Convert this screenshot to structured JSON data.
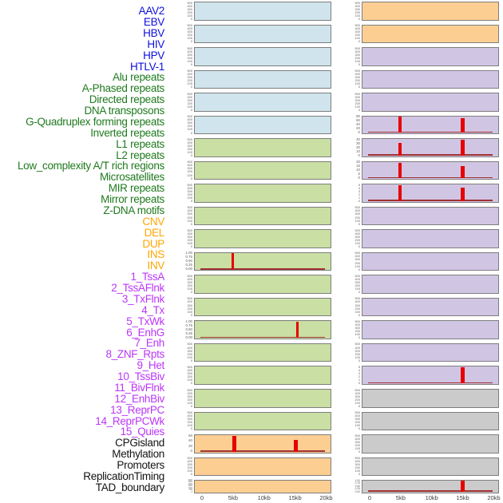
{
  "figure": {
    "group_colors": {
      "virus": "#0f0fdd",
      "repeat": "#1f7a1e",
      "sv": "#ffa500",
      "chromatin": "#bb35fa",
      "other": "#141414"
    },
    "row_labels": [
      {
        "text": "AAV2",
        "group": "virus"
      },
      {
        "text": "EBV",
        "group": "virus"
      },
      {
        "text": "HBV",
        "group": "virus"
      },
      {
        "text": "HIV",
        "group": "virus"
      },
      {
        "text": "HPV",
        "group": "virus"
      },
      {
        "text": "HTLV-1",
        "group": "virus"
      },
      {
        "text": "Alu repeats",
        "group": "repeat"
      },
      {
        "text": "A-Phased repeats",
        "group": "repeat"
      },
      {
        "text": "Directed repeats",
        "group": "repeat"
      },
      {
        "text": "DNA transposons",
        "group": "repeat"
      },
      {
        "text": "G-Quadruplex forming repeats",
        "group": "repeat"
      },
      {
        "text": "Inverted repeats",
        "group": "repeat"
      },
      {
        "text": "L1 repeats",
        "group": "repeat"
      },
      {
        "text": "L2 repeats",
        "group": "repeat"
      },
      {
        "text": "Low_complexity A/T rich regions",
        "group": "repeat"
      },
      {
        "text": "Microsatellites",
        "group": "repeat"
      },
      {
        "text": "MIR repeats",
        "group": "repeat"
      },
      {
        "text": "Mirror repeats",
        "group": "repeat"
      },
      {
        "text": "Z-DNA motifs",
        "group": "repeat"
      },
      {
        "text": "CNV",
        "group": "sv"
      },
      {
        "text": "DEL",
        "group": "sv"
      },
      {
        "text": "DUP",
        "group": "sv"
      },
      {
        "text": "INS",
        "group": "sv"
      },
      {
        "text": "INV",
        "group": "sv"
      },
      {
        "text": "1_TssA",
        "group": "chromatin"
      },
      {
        "text": "2_TssAFlnk",
        "group": "chromatin"
      },
      {
        "text": "3_TxFlnk",
        "group": "chromatin"
      },
      {
        "text": "4_Tx",
        "group": "chromatin"
      },
      {
        "text": "5_TxWk",
        "group": "chromatin"
      },
      {
        "text": "6_EnhG",
        "group": "chromatin"
      },
      {
        "text": "7_Enh",
        "group": "chromatin"
      },
      {
        "text": "8_ZNF_Rpts",
        "group": "chromatin"
      },
      {
        "text": "9_Het",
        "group": "chromatin"
      },
      {
        "text": "10_TssBiv",
        "group": "chromatin"
      },
      {
        "text": "11_BivFlnk",
        "group": "chromatin"
      },
      {
        "text": "12_EnhBiv",
        "group": "chromatin"
      },
      {
        "text": "13_ReprPC",
        "group": "chromatin"
      },
      {
        "text": "14_ReprPCWk",
        "group": "chromatin"
      },
      {
        "text": "15_Quies",
        "group": "chromatin"
      },
      {
        "text": "CPGisland",
        "group": "other"
      },
      {
        "text": "Methylation",
        "group": "other"
      },
      {
        "text": "Promoters",
        "group": "other"
      },
      {
        "text": "ReplicationTiming",
        "group": "other"
      },
      {
        "text": "TAD_boundary",
        "group": "other"
      }
    ]
  },
  "chart_data": {
    "type": "line",
    "x_axis": {
      "tick_labels": [
        "0",
        "5kb",
        "10kb",
        "15kb",
        "20kb"
      ],
      "tick_kb": [
        0,
        5,
        10,
        15,
        20
      ],
      "range_kb": [
        0,
        20
      ]
    },
    "fill_colors": {
      "blue": "#cfe4ec",
      "green": "#cadfa3",
      "orange": "#fcce92",
      "purple": "#d1c5e4",
      "gray": "#cbcbcb"
    },
    "spike_color": "#e60000",
    "baseline_color": "#a03232",
    "columns": [
      {
        "panels": [
          {
            "fill": "blue",
            "yticks": [
              "500",
              "400",
              "300",
              "200",
              "100",
              "0"
            ],
            "spikes": [],
            "baseline": false
          },
          {
            "fill": "blue",
            "yticks": [
              "500",
              "400",
              "300",
              "200",
              "100",
              "0"
            ],
            "spikes": [],
            "baseline": false
          },
          {
            "fill": "blue",
            "yticks": [
              "500",
              "400",
              "300",
              "200",
              "100",
              "0"
            ],
            "spikes": [],
            "baseline": false
          },
          {
            "fill": "blue",
            "yticks": [
              "500",
              "400",
              "300",
              "200",
              "100",
              "0"
            ],
            "spikes": [],
            "baseline": false
          },
          {
            "fill": "blue",
            "yticks": [
              "500",
              "400",
              "300",
              "200",
              "100",
              "0"
            ],
            "spikes": [],
            "baseline": false
          },
          {
            "fill": "blue",
            "yticks": [
              "500",
              "400",
              "300",
              "200",
              "100",
              "0"
            ],
            "spikes": [],
            "baseline": false
          },
          {
            "fill": "green",
            "yticks": [
              "500",
              "400",
              "300",
              "200",
              "100",
              "0"
            ],
            "spikes": [],
            "baseline": false
          },
          {
            "fill": "green",
            "yticks": [
              "500",
              "400",
              "300",
              "200",
              "100",
              "0"
            ],
            "spikes": [],
            "baseline": false
          },
          {
            "fill": "green",
            "yticks": [
              "500",
              "400",
              "300",
              "200",
              "100",
              "0"
            ],
            "spikes": [],
            "baseline": false
          },
          {
            "fill": "green",
            "yticks": [
              "500",
              "400",
              "300",
              "200",
              "100",
              "0"
            ],
            "spikes": [],
            "baseline": false
          },
          {
            "fill": "green",
            "yticks": [
              "500",
              "400",
              "300",
              "200",
              "100",
              "0"
            ],
            "spikes": [],
            "baseline": false
          },
          {
            "fill": "green",
            "yticks": [
              "1.00",
              "0.75",
              "0.50",
              "0.25",
              "0.00"
            ],
            "spikes": [
              {
                "kb": 4.8,
                "value": 0.98,
                "w": 3
              }
            ],
            "baseline": true
          },
          {
            "fill": "green",
            "yticks": [
              "500",
              "400",
              "300",
              "200",
              "100",
              "0"
            ],
            "spikes": [],
            "baseline": false
          },
          {
            "fill": "green",
            "yticks": [
              "500",
              "400",
              "300",
              "200",
              "100",
              "0"
            ],
            "spikes": [],
            "baseline": false
          },
          {
            "fill": "green",
            "yticks": [
              "1.00",
              "0.75",
              "0.50",
              "0.25",
              "0.00"
            ],
            "spikes": [
              {
                "kb": 15.3,
                "value": 0.97,
                "w": 3
              }
            ],
            "baseline": true
          },
          {
            "fill": "green",
            "yticks": [
              "500",
              "400",
              "300",
              "200",
              "100",
              "0"
            ],
            "spikes": [],
            "baseline": false
          },
          {
            "fill": "green",
            "yticks": [
              "500",
              "400",
              "300",
              "200",
              "100",
              "0"
            ],
            "spikes": [],
            "baseline": false
          },
          {
            "fill": "green",
            "yticks": [
              "500",
              "400",
              "300",
              "200",
              "100",
              "0"
            ],
            "spikes": [],
            "baseline": false
          },
          {
            "fill": "green",
            "yticks": [
              "500",
              "400",
              "300",
              "200",
              "100",
              "0"
            ],
            "spikes": [],
            "baseline": false
          },
          {
            "fill": "orange",
            "yticks": [
              "60",
              "40",
              "20",
              "0"
            ],
            "spikes": [
              {
                "kb": 5.05,
                "value": 57,
                "w": 5
              },
              {
                "kb": 15.05,
                "value": 42,
                "w": 5
              }
            ],
            "baseline": true
          },
          {
            "fill": "orange",
            "yticks": [
              "500",
              "400",
              "300",
              "200",
              "100",
              "0"
            ],
            "spikes": [],
            "baseline": false
          },
          {
            "fill": "orange",
            "yticks": [
              "3000",
              "2500",
              "2000",
              "1500",
              "1000",
              "500",
              "0"
            ],
            "spikes": [],
            "baseline": false
          }
        ]
      },
      {
        "panels": [
          {
            "fill": "orange",
            "yticks": [
              "500",
              "400",
              "300",
              "200",
              "100",
              "0"
            ],
            "spikes": [],
            "baseline": false
          },
          {
            "fill": "orange",
            "yticks": [
              "500",
              "400",
              "300",
              "200",
              "100",
              "0"
            ],
            "spikes": [],
            "baseline": false
          },
          {
            "fill": "purple",
            "yticks": [
              "500",
              "400",
              "300",
              "200",
              "100",
              "0"
            ],
            "spikes": [],
            "baseline": false
          },
          {
            "fill": "purple",
            "yticks": [
              "500",
              "400",
              "300",
              "200",
              "100",
              "0"
            ],
            "spikes": [],
            "baseline": false
          },
          {
            "fill": "purple",
            "yticks": [
              "500",
              "400",
              "300",
              "200",
              "100",
              "0"
            ],
            "spikes": [],
            "baseline": false
          },
          {
            "fill": "purple",
            "yticks": [
              "80",
              "60",
              "40",
              "20",
              "0"
            ],
            "spikes": [
              {
                "kb": 4.75,
                "value": 77,
                "w": 4
              },
              {
                "kb": 14.9,
                "value": 69,
                "w": 5
              }
            ],
            "baseline": true
          },
          {
            "fill": "purple",
            "yticks": [
              "40",
              "30",
              "20",
              "10",
              "0"
            ],
            "spikes": [
              {
                "kb": 4.75,
                "value": 30,
                "w": 4
              },
              {
                "kb": 14.9,
                "value": 39,
                "w": 5
              }
            ],
            "baseline": true
          },
          {
            "fill": "purple",
            "yticks": [
              "20",
              "15",
              "10",
              "5",
              "0"
            ],
            "spikes": [
              {
                "kb": 4.75,
                "value": 19,
                "w": 4
              },
              {
                "kb": 14.9,
                "value": 15,
                "w": 5
              }
            ],
            "baseline": true
          },
          {
            "fill": "purple",
            "yticks": [
              "5",
              "4",
              "3",
              "2",
              "1",
              "0"
            ],
            "spikes": [
              {
                "kb": 4.75,
                "value": 4.8,
                "w": 4
              },
              {
                "kb": 14.9,
                "value": 4,
                "w": 5
              }
            ],
            "baseline": true
          },
          {
            "fill": "purple",
            "yticks": [
              "500",
              "400",
              "300",
              "200",
              "100",
              "0"
            ],
            "spikes": [],
            "baseline": false
          },
          {
            "fill": "purple",
            "yticks": [
              "500",
              "400",
              "300",
              "200",
              "100",
              "0"
            ],
            "spikes": [],
            "baseline": false
          },
          {
            "fill": "purple",
            "yticks": [
              "500",
              "400",
              "300",
              "200",
              "100",
              "0"
            ],
            "spikes": [],
            "baseline": false
          },
          {
            "fill": "purple",
            "yticks": [
              "500",
              "400",
              "300",
              "200",
              "100",
              "0"
            ],
            "spikes": [],
            "baseline": false
          },
          {
            "fill": "purple",
            "yticks": [
              "500",
              "400",
              "300",
              "200",
              "100",
              "0"
            ],
            "spikes": [],
            "baseline": false
          },
          {
            "fill": "purple",
            "yticks": [
              "500",
              "400",
              "300",
              "200",
              "100",
              "0"
            ],
            "spikes": [],
            "baseline": false
          },
          {
            "fill": "purple",
            "yticks": [
              "500",
              "400",
              "300",
              "200",
              "100",
              "0"
            ],
            "spikes": [],
            "baseline": false
          },
          {
            "fill": "purple",
            "yticks": [
              "5",
              "4",
              "3",
              "2",
              "1",
              "0"
            ],
            "spikes": [
              {
                "kb": 14.9,
                "value": 4.8,
                "w": 5
              }
            ],
            "baseline": true
          },
          {
            "fill": "gray",
            "yticks": [
              "500",
              "400",
              "300",
              "200",
              "100",
              "0"
            ],
            "spikes": [],
            "baseline": false
          },
          {
            "fill": "gray",
            "yticks": [
              "500",
              "400",
              "300",
              "200",
              "100",
              "0"
            ],
            "spikes": [],
            "baseline": false
          },
          {
            "fill": "gray",
            "yticks": [
              "500",
              "400",
              "300",
              "200",
              "100",
              "0"
            ],
            "spikes": [],
            "baseline": false
          },
          {
            "fill": "gray",
            "yticks": [
              "500",
              "400",
              "300",
              "200",
              "100",
              "0"
            ],
            "spikes": [],
            "baseline": false
          },
          {
            "fill": "gray",
            "yticks": [
              "1.00",
              "0.75",
              "0.50",
              "0.25",
              "0.00"
            ],
            "spikes": [
              {
                "kb": 14.9,
                "value": 1.0,
                "w": 5
              }
            ],
            "baseline": true
          }
        ]
      }
    ]
  }
}
